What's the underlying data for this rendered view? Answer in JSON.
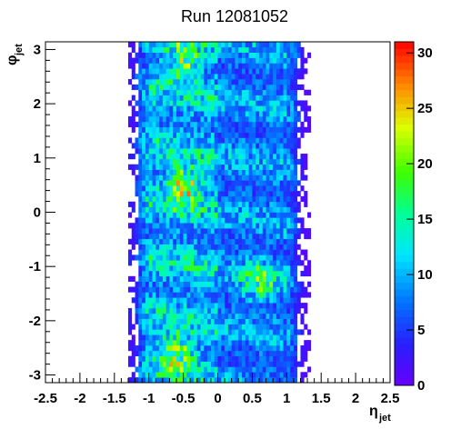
{
  "chart_data": {
    "type": "heatmap",
    "title": "Run 12081052",
    "xlabel": {
      "symbol": "η",
      "sub": "jet"
    },
    "ylabel": {
      "symbol": "φ",
      "sub": "jet"
    },
    "xlim": [
      -2.5,
      2.5
    ],
    "ylim": [
      -3.14159,
      3.14159
    ],
    "zlim": [
      0,
      31
    ],
    "x_ticks": [
      "-2.5",
      "-2",
      "-1.5",
      "-1",
      "-0.5",
      "0",
      "0.5",
      "1",
      "1.5",
      "2",
      "2.5"
    ],
    "x_tick_values": [
      -2.5,
      -2,
      -1.5,
      -1,
      -0.5,
      0,
      0.5,
      1,
      1.5,
      2,
      2.5
    ],
    "y_ticks": [
      "-3",
      "-2",
      "-1",
      "0",
      "1",
      "2",
      "3"
    ],
    "y_tick_values": [
      -3,
      -2,
      -1,
      0,
      1,
      2,
      3
    ],
    "z_ticks": [
      "0",
      "5",
      "10",
      "15",
      "20",
      "25",
      "30"
    ],
    "z_tick_values": [
      0,
      5,
      10,
      15,
      20,
      25,
      30
    ],
    "bins": {
      "nx": 100,
      "ny": 64
    },
    "eta_acceptance": [
      -1.2,
      1.2
    ],
    "peak_density_regions": [
      {
        "eta": -0.5,
        "phi": 0.5,
        "max_count": 30
      },
      {
        "eta": -0.6,
        "phi": -2.6,
        "max_count": 25
      },
      {
        "eta": 0.6,
        "phi": -1.3,
        "max_count": 20
      },
      {
        "eta": -0.5,
        "phi": 2.8,
        "max_count": 22
      }
    ],
    "grid": false,
    "colorbar": "right"
  }
}
